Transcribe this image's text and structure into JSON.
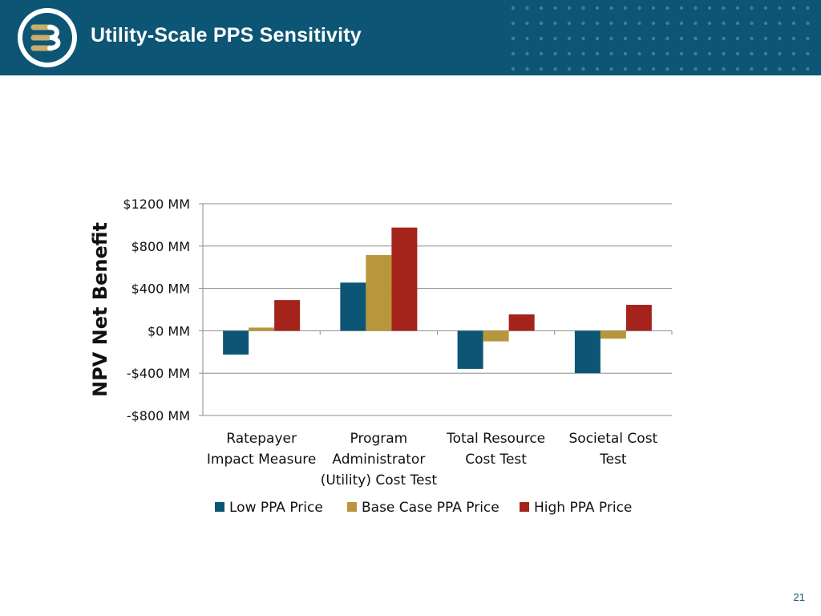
{
  "header": {
    "title": "Utility-Scale PPS Sensitivity",
    "logo_label": "E3",
    "background_color": "#0c5575"
  },
  "chart_data": {
    "type": "bar",
    "ylabel": "NPV Net Benefit",
    "xlabel": "",
    "ylim": [
      -800,
      1200
    ],
    "yticks": [
      {
        "value": 1200,
        "label": "$1200  MM"
      },
      {
        "value": 800,
        "label": "$800  MM"
      },
      {
        "value": 400,
        "label": "$400  MM"
      },
      {
        "value": 0,
        "label": "$0  MM"
      },
      {
        "value": -400,
        "label": "-$400  MM"
      },
      {
        "value": -800,
        "label": "-$800  MM"
      }
    ],
    "grid": true,
    "legend_position": "bottom",
    "categories": [
      [
        "Ratepayer",
        "Impact Measure"
      ],
      [
        "Program",
        "Administrator",
        "(Utility) Cost Test"
      ],
      [
        "Total Resource",
        "Cost Test"
      ],
      [
        "Societal Cost",
        "Test"
      ]
    ],
    "series": [
      {
        "name": "Low PPA Price",
        "color": "#0c5575",
        "values": [
          -225,
          455,
          -360,
          -400
        ]
      },
      {
        "name": "Base Case PPA Price",
        "color": "#b8963b",
        "values": [
          30,
          715,
          -100,
          -75
        ]
      },
      {
        "name": "High PPA Price",
        "color": "#a4231b",
        "values": [
          290,
          975,
          155,
          245
        ]
      }
    ]
  },
  "footer": {
    "page_number": "21"
  }
}
